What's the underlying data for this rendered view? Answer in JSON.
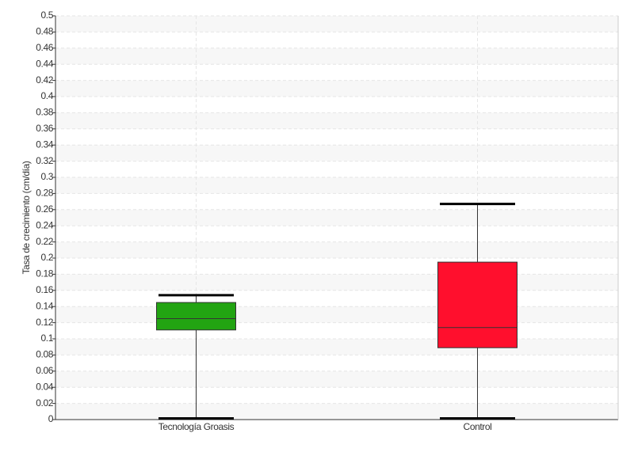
{
  "chart_data": {
    "type": "box",
    "y_label": "Tasa de crecimiento (cm/día)",
    "categories": [
      "Tecnología Groasis",
      "Control"
    ],
    "boxes": [
      {
        "whisker_low": 0,
        "q1": 0.111,
        "median": 0.125,
        "q3": 0.145,
        "whisker_high": 0.154,
        "color": "#22a412"
      },
      {
        "whisker_low": 0,
        "q1": 0.089,
        "median": 0.114,
        "q3": 0.195,
        "whisker_high": 0.267,
        "color": "#ff0f2d"
      }
    ],
    "ylim": [
      0,
      0.5
    ],
    "yticks": [
      0,
      0.02,
      0.04,
      0.06,
      0.08,
      0.1,
      0.12,
      0.14,
      0.16,
      0.18,
      0.2,
      0.22,
      0.24,
      0.26,
      0.28,
      0.3,
      0.32,
      0.34,
      0.36,
      0.38,
      0.4,
      0.42,
      0.44,
      0.46,
      0.48,
      0.5
    ],
    "grid": true
  }
}
